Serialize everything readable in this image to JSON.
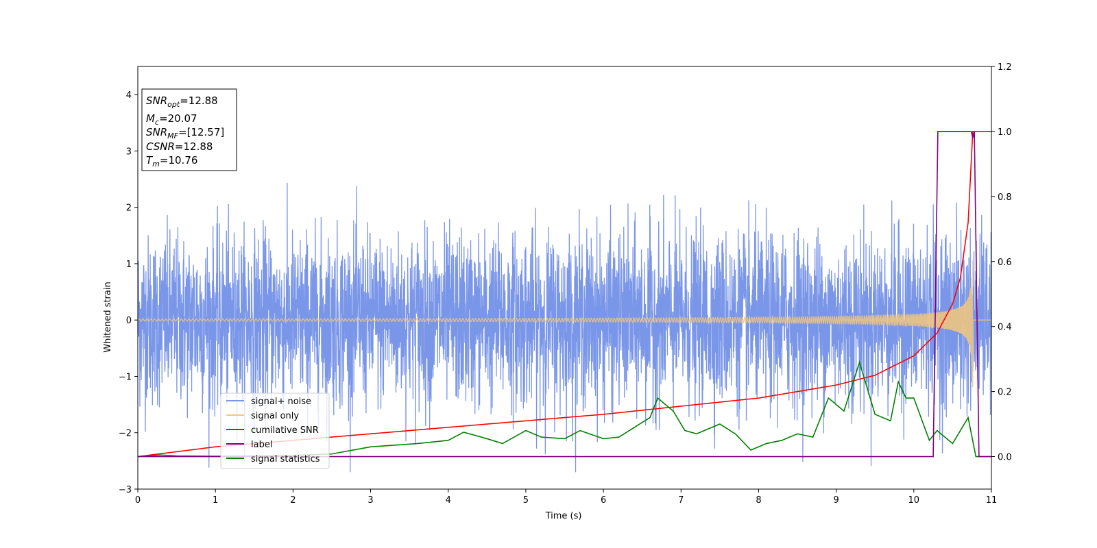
{
  "chart_data": {
    "type": "line",
    "xlabel": "Time (s)",
    "ylabel": "Whitened strain",
    "xlim": [
      0,
      11
    ],
    "ylim_left": [
      -3,
      4.5
    ],
    "ylim_right": [
      -0.1,
      1.2
    ],
    "x_ticks": [
      0,
      1,
      2,
      3,
      4,
      5,
      6,
      7,
      8,
      9,
      10,
      11
    ],
    "y_ticks_left": [
      -3,
      -2,
      -1,
      0,
      1,
      2,
      3,
      4
    ],
    "y_ticks_right": [
      "0.0",
      "0.2",
      "0.4",
      "0.6",
      "0.8",
      "1.0",
      "1.2"
    ],
    "legend_position": "lower-left",
    "grid": false,
    "info_box": {
      "snr_opt": {
        "base": "SNR",
        "sub": "opt",
        "value": "=12.88"
      },
      "mc": {
        "base": "M",
        "sub": "c",
        "value": "=20.07"
      },
      "snr_mf": {
        "base": "SNR",
        "sub": "MF",
        "value": "=[12.57]"
      },
      "csnr": {
        "base": "CSNR",
        "value": "=12.88"
      },
      "tm": {
        "base": "T",
        "sub": "m",
        "value": "=10.76"
      }
    },
    "series": [
      {
        "name": "signal+ noise",
        "color": "#7a96e8",
        "axis": "left",
        "description_values": {
          "noise_sigma": 0.75,
          "t_start": 0,
          "t_end": 11
        }
      },
      {
        "name": "signal only",
        "color": "#f5c87a",
        "axis": "left",
        "chirp": {
          "t_merge": 10.76,
          "amp_start": 0.02,
          "amp_peak": 1.2
        }
      },
      {
        "name": "cumilative SNR",
        "color": "#ff0000",
        "axis": "right",
        "x": [
          0,
          1,
          2,
          3,
          4,
          5,
          6,
          7,
          8,
          9,
          9.5,
          10,
          10.3,
          10.5,
          10.6,
          10.7,
          10.76,
          11
        ],
        "y": [
          0.0,
          0.03,
          0.05,
          0.07,
          0.09,
          0.11,
          0.13,
          0.155,
          0.18,
          0.22,
          0.25,
          0.31,
          0.38,
          0.47,
          0.55,
          0.72,
          1.0,
          1.0
        ]
      },
      {
        "name": "label",
        "color": "#800080",
        "axis": "right",
        "x": [
          0,
          10.25,
          10.31,
          10.74,
          10.76,
          10.78,
          10.84,
          11
        ],
        "y": [
          0,
          0,
          1,
          1,
          0.98,
          1,
          0,
          0
        ]
      },
      {
        "name": "signal statistics",
        "color": "#008000",
        "axis": "right",
        "x": [
          0,
          0.3,
          0.5,
          1,
          1.5,
          2,
          2.5,
          3,
          3.3,
          3.6,
          3.8,
          4,
          4.2,
          4.5,
          4.7,
          5,
          5.2,
          5.5,
          5.7,
          6,
          6.2,
          6.4,
          6.6,
          6.7,
          6.9,
          7.05,
          7.2,
          7.5,
          7.7,
          7.9,
          8.1,
          8.3,
          8.5,
          8.7,
          8.9,
          9.1,
          9.3,
          9.5,
          9.7,
          9.8,
          9.9,
          10,
          10.2,
          10.3,
          10.5,
          10.7,
          10.8,
          11
        ],
        "y": [
          0,
          0.005,
          0.002,
          0.001,
          0.002,
          0.004,
          0.008,
          0.03,
          0.035,
          0.04,
          0.045,
          0.05,
          0.075,
          0.055,
          0.04,
          0.08,
          0.06,
          0.055,
          0.08,
          0.055,
          0.06,
          0.09,
          0.12,
          0.18,
          0.14,
          0.08,
          0.07,
          0.1,
          0.07,
          0.02,
          0.04,
          0.05,
          0.07,
          0.06,
          0.18,
          0.14,
          0.29,
          0.13,
          0.11,
          0.23,
          0.18,
          0.18,
          0.05,
          0.08,
          0.04,
          0.12,
          0.0,
          0.0
        ]
      }
    ]
  }
}
